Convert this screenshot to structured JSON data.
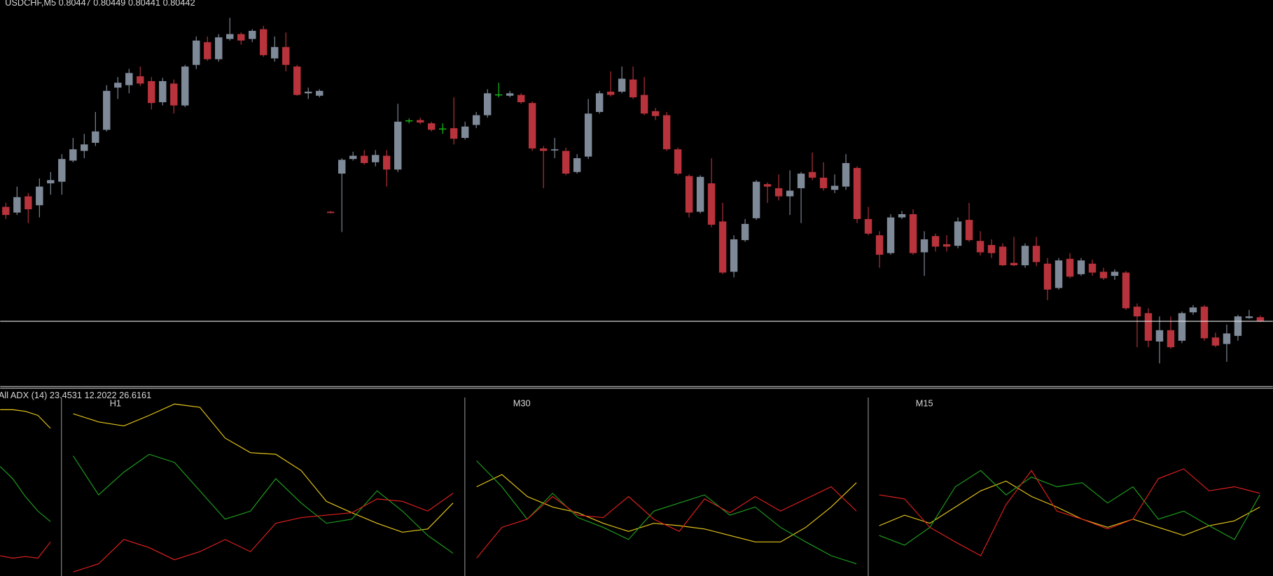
{
  "chart_data": [
    {
      "type": "candlestick",
      "title": "USDCHF,M5  0.80447 0.80449 0.80441 0.80442",
      "ylim": [
        0.80363,
        0.80838
      ],
      "price_line": 0.80442,
      "up_color": "#7f8a99",
      "down_color": "#b8333b",
      "doji_color": "#16c316",
      "line_color": "#e8e8e8",
      "candles": [
        [
          0.80583,
          0.80588,
          0.80568,
          0.80573
        ],
        [
          0.80576,
          0.80608,
          0.80573,
          0.80595
        ],
        [
          0.80596,
          0.806,
          0.80563,
          0.8058
        ],
        [
          0.80585,
          0.80618,
          0.8057,
          0.80608
        ],
        [
          0.80612,
          0.80626,
          0.80598,
          0.80616
        ],
        [
          0.80614,
          0.80648,
          0.80598,
          0.80642
        ],
        [
          0.8064,
          0.80668,
          0.80638,
          0.80654
        ],
        [
          0.80652,
          0.80673,
          0.80643,
          0.8066
        ],
        [
          0.80662,
          0.807,
          0.80658,
          0.80676
        ],
        [
          0.80678,
          0.80733,
          0.80676,
          0.80726
        ],
        [
          0.8073,
          0.80743,
          0.80716,
          0.80736
        ],
        [
          0.80733,
          0.80753,
          0.80723,
          0.80748
        ],
        [
          0.80744,
          0.80756,
          0.80732,
          0.80735
        ],
        [
          0.80738,
          0.80743,
          0.80703,
          0.80711
        ],
        [
          0.80712,
          0.80742,
          0.80708,
          0.80738
        ],
        [
          0.80735,
          0.8074,
          0.80698,
          0.80708
        ],
        [
          0.80708,
          0.80758,
          0.80706,
          0.80756
        ],
        [
          0.80758,
          0.80793,
          0.80753,
          0.80788
        ],
        [
          0.80786,
          0.80793,
          0.80763,
          0.80765
        ],
        [
          0.80765,
          0.80796,
          0.80762,
          0.80792
        ],
        [
          0.8079,
          0.80816,
          0.80788,
          0.80796
        ],
        [
          0.80796,
          0.80798,
          0.80783,
          0.80788
        ],
        [
          0.8079,
          0.80802,
          0.80786,
          0.808
        ],
        [
          0.80802,
          0.80806,
          0.80768,
          0.8077
        ],
        [
          0.80766,
          0.80793,
          0.80762,
          0.8078
        ],
        [
          0.8078,
          0.80798,
          0.8075,
          0.80758
        ],
        [
          0.80756,
          0.80758,
          0.8072,
          0.80721
        ],
        [
          0.80723,
          0.8073,
          0.80716,
          0.80725
        ],
        [
          0.8072,
          0.80728,
          0.80718,
          0.80726
        ],
        [
          0.80577,
          0.80578,
          0.80575,
          0.80576
        ],
        [
          0.80624,
          0.80643,
          0.80552,
          0.80641
        ],
        [
          0.80642,
          0.80651,
          0.8064,
          0.80646
        ],
        [
          0.80646,
          0.80653,
          0.80635,
          0.80637
        ],
        [
          0.80638,
          0.80653,
          0.80633,
          0.80647
        ],
        [
          0.80646,
          0.80653,
          0.80608,
          0.80629
        ],
        [
          0.80629,
          0.8071,
          0.80626,
          0.80688
        ],
        [
          0.80689,
          0.80692,
          0.80686,
          0.80689
        ],
        [
          0.8069,
          0.80693,
          0.80685,
          0.80687
        ],
        [
          0.80686,
          0.80688,
          0.80676,
          0.80678
        ],
        [
          0.80679,
          0.80686,
          0.80673,
          0.80679
        ],
        [
          0.8068,
          0.80718,
          0.8066,
          0.80667
        ],
        [
          0.80668,
          0.80688,
          0.80666,
          0.80682
        ],
        [
          0.80684,
          0.807,
          0.8068,
          0.80696
        ],
        [
          0.80696,
          0.80728,
          0.80693,
          0.80723
        ],
        [
          0.80721,
          0.80736,
          0.80718,
          0.80721
        ],
        [
          0.8072,
          0.80726,
          0.80718,
          0.80723
        ],
        [
          0.80721,
          0.80723,
          0.8071,
          0.80712
        ],
        [
          0.80711,
          0.80713,
          0.80652,
          0.80655
        ],
        [
          0.80655,
          0.80658,
          0.80606,
          0.80652
        ],
        [
          0.80653,
          0.80668,
          0.80643,
          0.80654
        ],
        [
          0.80652,
          0.80656,
          0.80622,
          0.80624
        ],
        [
          0.80626,
          0.80648,
          0.80624,
          0.80643
        ],
        [
          0.80645,
          0.80716,
          0.80642,
          0.80698
        ],
        [
          0.807,
          0.80726,
          0.80698,
          0.80723
        ],
        [
          0.80725,
          0.8075,
          0.80719,
          0.80721
        ],
        [
          0.80725,
          0.80756,
          0.80723,
          0.80741
        ],
        [
          0.8074,
          0.80756,
          0.80716,
          0.80718
        ],
        [
          0.80721,
          0.80743,
          0.80696,
          0.80698
        ],
        [
          0.80701,
          0.80705,
          0.8069,
          0.80695
        ],
        [
          0.80696,
          0.807,
          0.80652,
          0.80654
        ],
        [
          0.80654,
          0.80656,
          0.80622,
          0.80624
        ],
        [
          0.80621,
          0.80623,
          0.8057,
          0.80576
        ],
        [
          0.80577,
          0.80622,
          0.80575,
          0.8062
        ],
        [
          0.80612,
          0.80643,
          0.80558,
          0.80561
        ],
        [
          0.80565,
          0.80588,
          0.805,
          0.80502
        ],
        [
          0.80503,
          0.80548,
          0.80496,
          0.80543
        ],
        [
          0.80542,
          0.80568,
          0.8054,
          0.80562
        ],
        [
          0.80569,
          0.80616,
          0.80567,
          0.80614
        ],
        [
          0.80611,
          0.80613,
          0.80588,
          0.80608
        ],
        [
          0.80606,
          0.80623,
          0.80591,
          0.80596
        ],
        [
          0.80596,
          0.80628,
          0.80573,
          0.80603
        ],
        [
          0.80606,
          0.80626,
          0.80563,
          0.80624
        ],
        [
          0.80626,
          0.8065,
          0.80616,
          0.80619
        ],
        [
          0.80619,
          0.80638,
          0.80603,
          0.80606
        ],
        [
          0.80604,
          0.80623,
          0.806,
          0.80609
        ],
        [
          0.80608,
          0.80648,
          0.80604,
          0.80637
        ],
        [
          0.80631,
          0.80633,
          0.80563,
          0.80568
        ],
        [
          0.80568,
          0.80583,
          0.80548,
          0.8055
        ],
        [
          0.80548,
          0.80553,
          0.80508,
          0.80524
        ],
        [
          0.80526,
          0.80574,
          0.80524,
          0.8057
        ],
        [
          0.8057,
          0.80578,
          0.80568,
          0.80574
        ],
        [
          0.80574,
          0.8058,
          0.80524,
          0.80526
        ],
        [
          0.80527,
          0.80553,
          0.80498,
          0.80543
        ],
        [
          0.80547,
          0.8055,
          0.80528,
          0.80534
        ],
        [
          0.80537,
          0.80548,
          0.80528,
          0.80534
        ],
        [
          0.80535,
          0.8057,
          0.80532,
          0.80565
        ],
        [
          0.80567,
          0.80588,
          0.8054,
          0.80542
        ],
        [
          0.80541,
          0.80553,
          0.80523,
          0.80527
        ],
        [
          0.80536,
          0.80543,
          0.8052,
          0.80526
        ],
        [
          0.80534,
          0.80538,
          0.8051,
          0.80511
        ],
        [
          0.80514,
          0.80546,
          0.8051,
          0.80511
        ],
        [
          0.80511,
          0.80538,
          0.80508,
          0.80535
        ],
        [
          0.80535,
          0.80546,
          0.8051,
          0.80515
        ],
        [
          0.80513,
          0.8052,
          0.80468,
          0.80481
        ],
        [
          0.80483,
          0.8052,
          0.80481,
          0.80517
        ],
        [
          0.80519,
          0.80526,
          0.80495,
          0.80497
        ],
        [
          0.805,
          0.8052,
          0.80498,
          0.80517
        ],
        [
          0.80513,
          0.80518,
          0.80498,
          0.80502
        ],
        [
          0.80503,
          0.80508,
          0.80493,
          0.80495
        ],
        [
          0.80498,
          0.80506,
          0.80493,
          0.80503
        ],
        [
          0.80502,
          0.80504,
          0.80456,
          0.80458
        ],
        [
          0.8046,
          0.80464,
          0.8041,
          0.80448
        ],
        [
          0.80452,
          0.80458,
          0.8041,
          0.80418
        ],
        [
          0.80417,
          0.80448,
          0.8039,
          0.80431
        ],
        [
          0.80431,
          0.80448,
          0.80408,
          0.8041
        ],
        [
          0.80418,
          0.80454,
          0.80415,
          0.80452
        ],
        [
          0.80453,
          0.80462,
          0.8045,
          0.80459
        ],
        [
          0.8046,
          0.80462,
          0.80418,
          0.80421
        ],
        [
          0.80422,
          0.80428,
          0.8041,
          0.80412
        ],
        [
          0.80414,
          0.80438,
          0.80392,
          0.80427
        ],
        [
          0.80424,
          0.8045,
          0.80418,
          0.80448
        ],
        [
          0.80446,
          0.80456,
          0.80445,
          0.80448
        ],
        [
          0.80447,
          0.80449,
          0.80441,
          0.80442
        ]
      ]
    },
    {
      "type": "line",
      "title": "All ADX (14) 23.4531 12.2022 26.6161",
      "ylim": [
        0,
        46
      ],
      "panels": [
        {
          "series": [
            {
              "color": "#e6c619",
              "values": [
                41,
                41,
                40.6,
                39.6,
                36.4
              ]
            },
            {
              "color": "#1f9e1f",
              "values": [
                27,
                24,
                19.6,
                16,
                13.4
              ]
            },
            {
              "color": "#e0201f",
              "values": [
                5,
                4.4,
                4.8,
                4.4,
                8.4
              ]
            }
          ]
        },
        {
          "label": "H1",
          "series": [
            {
              "color": "#e6c619",
              "values": [
                40,
                38,
                37,
                39.6,
                42.4,
                41.6,
                34,
                30.4,
                30,
                26,
                18.4,
                15.6,
                13,
                10.8,
                11.6,
                18
              ]
            },
            {
              "color": "#1f9e1f",
              "values": [
                29.6,
                20,
                25.6,
                30,
                28,
                21,
                14,
                16,
                24,
                18,
                13,
                14,
                21,
                16,
                10,
                5.6
              ]
            },
            {
              "color": "#e0201f",
              "values": [
                1,
                3,
                9,
                7,
                4,
                6,
                9,
                6,
                13,
                14.4,
                15,
                15.6,
                19,
                18.4,
                16,
                20.4
              ]
            }
          ]
        },
        {
          "label": "M30",
          "series": [
            {
              "color": "#e6c619",
              "values": [
                22,
                25,
                19.6,
                17,
                15.6,
                13,
                11,
                13,
                12.4,
                11.6,
                10,
                8.4,
                8.4,
                12,
                17,
                23
              ]
            },
            {
              "color": "#1f9e1f",
              "values": [
                28.4,
                22,
                14,
                20.4,
                14.4,
                12,
                9,
                16,
                18,
                20,
                15,
                17,
                12,
                8.4,
                5,
                3
              ]
            },
            {
              "color": "#e0201f",
              "values": [
                4.4,
                12,
                14,
                19.6,
                15,
                14.4,
                19.6,
                14,
                11,
                19,
                15.6,
                19.6,
                16,
                19,
                22,
                16
              ]
            }
          ]
        },
        {
          "label": "M15",
          "series": [
            {
              "color": "#e6c619",
              "values": [
                12.4,
                15,
                13,
                17,
                21,
                23.4,
                19.6,
                17,
                14,
                12,
                14,
                12,
                10,
                12.4,
                13.6,
                17
              ]
            },
            {
              "color": "#1f9e1f",
              "values": [
                10,
                7.6,
                12,
                22,
                26,
                20,
                24.4,
                22,
                23,
                18,
                22,
                14,
                16,
                12.4,
                9,
                20
              ]
            },
            {
              "color": "#e0201f",
              "values": [
                20,
                19,
                12,
                8.4,
                5,
                17.6,
                26,
                16,
                14,
                11.6,
                14,
                24,
                26.4,
                21,
                22,
                20.4
              ]
            }
          ]
        }
      ]
    }
  ]
}
